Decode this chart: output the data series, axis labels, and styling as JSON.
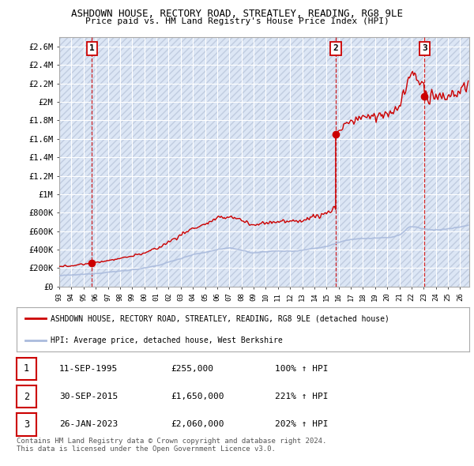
{
  "title": "ASHDOWN HOUSE, RECTORY ROAD, STREATLEY, READING, RG8 9LE",
  "subtitle": "Price paid vs. HM Land Registry's House Price Index (HPI)",
  "ylim": [
    0,
    2700000
  ],
  "yticks": [
    0,
    200000,
    400000,
    600000,
    800000,
    1000000,
    1200000,
    1400000,
    1600000,
    1800000,
    2000000,
    2200000,
    2400000,
    2600000
  ],
  "ytick_labels": [
    "£0",
    "£200K",
    "£400K",
    "£600K",
    "£800K",
    "£1M",
    "£1.2M",
    "£1.4M",
    "£1.6M",
    "£1.8M",
    "£2M",
    "£2.2M",
    "£2.4M",
    "£2.6M"
  ],
  "xlim_start": 1993.0,
  "xlim_end": 2026.75,
  "sale_color": "#cc0000",
  "hpi_color": "#aabbdd",
  "sale_label": "ASHDOWN HOUSE, RECTORY ROAD, STREATLEY, READING, RG8 9LE (detached house)",
  "hpi_label": "HPI: Average price, detached house, West Berkshire",
  "transactions": [
    {
      "num": 1,
      "date_x": 1995.69,
      "price": 255000,
      "label": "1"
    },
    {
      "num": 2,
      "date_x": 2015.75,
      "price": 1650000,
      "label": "2"
    },
    {
      "num": 3,
      "date_x": 2023.07,
      "price": 2060000,
      "label": "3"
    }
  ],
  "table_rows": [
    {
      "num": "1",
      "date": "11-SEP-1995",
      "price": "£255,000",
      "hpi": "100% ↑ HPI"
    },
    {
      "num": "2",
      "date": "30-SEP-2015",
      "price": "£1,650,000",
      "hpi": "221% ↑ HPI"
    },
    {
      "num": "3",
      "date": "26-JAN-2023",
      "price": "£2,060,000",
      "hpi": "202% ↑ HPI"
    }
  ],
  "footer": "Contains HM Land Registry data © Crown copyright and database right 2024.\nThis data is licensed under the Open Government Licence v3.0.",
  "bg_color": "#ffffff",
  "chart_bg": "#dce6f5",
  "grid_color": "#ffffff"
}
